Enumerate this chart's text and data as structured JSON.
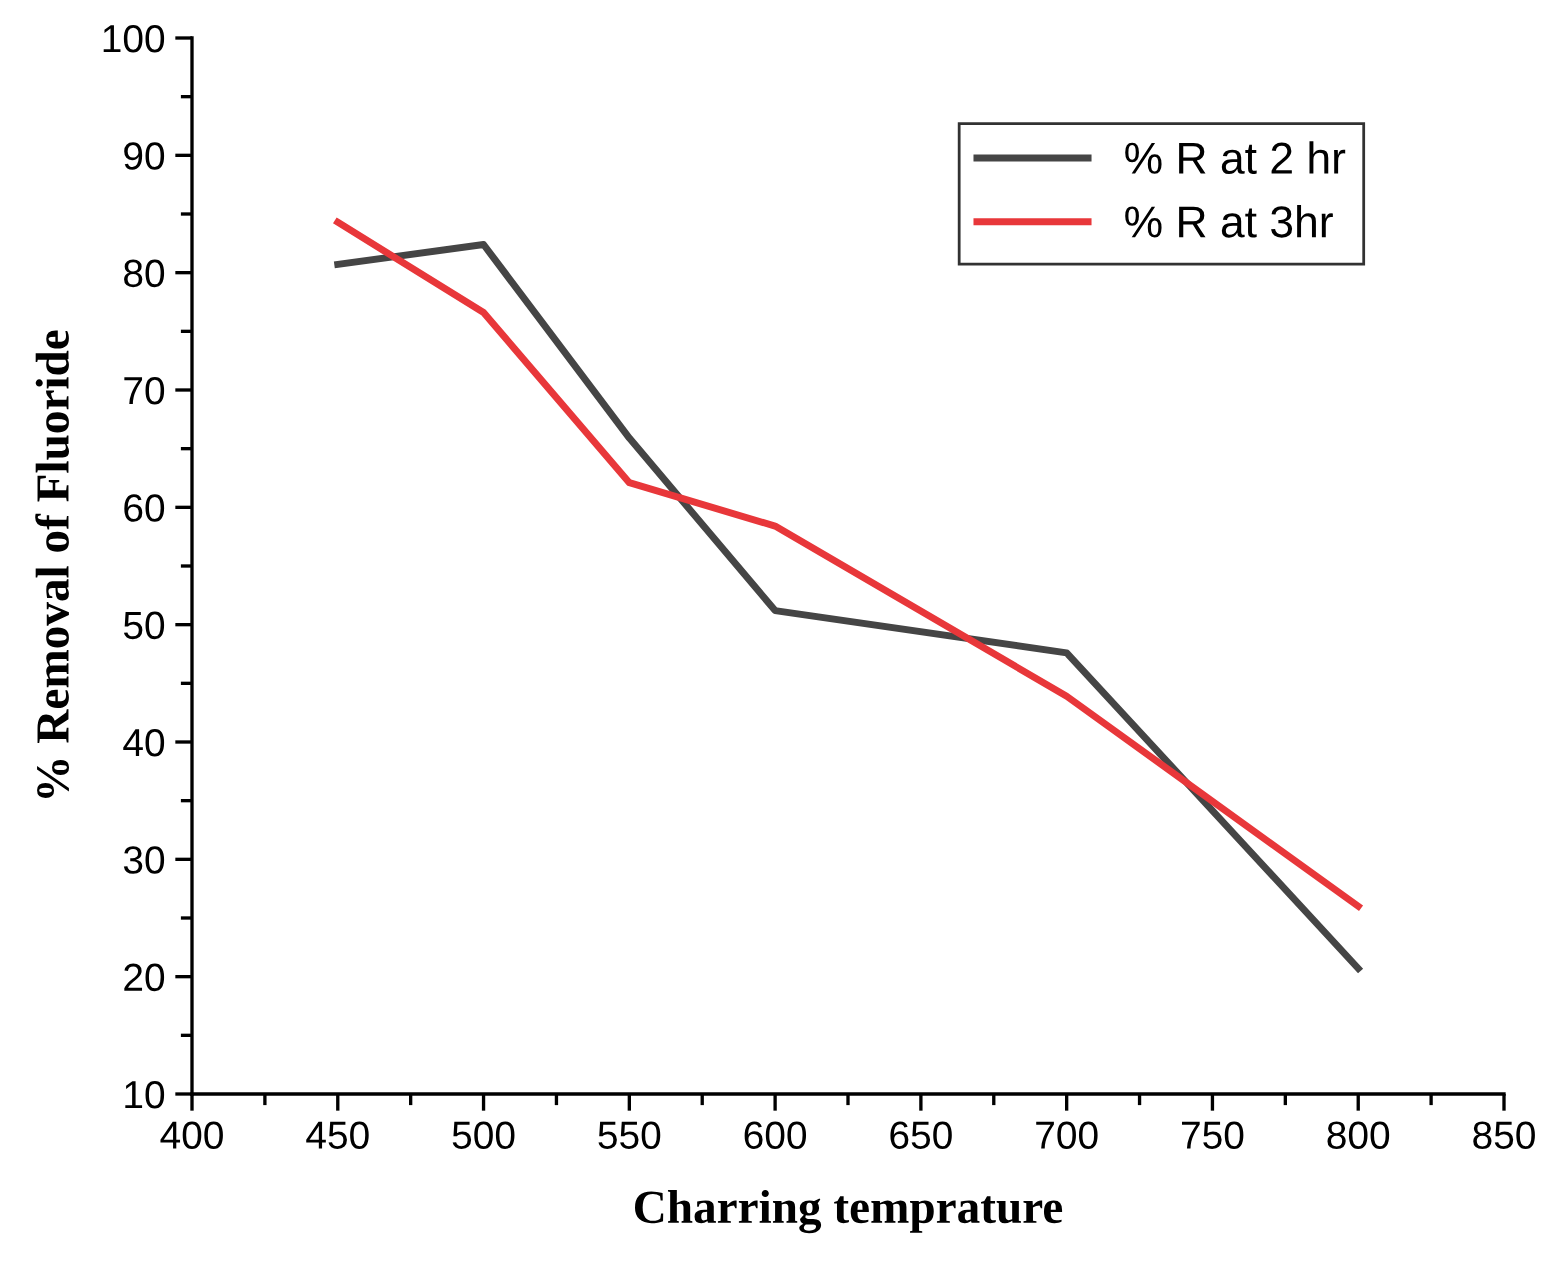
{
  "chart_data": {
    "type": "line",
    "xlabel": "Charring temprature",
    "ylabel": "% Removal of Fluoride",
    "x": [
      450,
      500,
      550,
      600,
      700,
      800
    ],
    "series": [
      {
        "name": "% R at 2 hr",
        "color": "#454545",
        "values": [
          80.7,
          82.4,
          65.9,
          51.2,
          47.6,
          20.7
        ]
      },
      {
        "name": "% R at 3hr",
        "color": "#e8373a",
        "values": [
          84.3,
          76.6,
          62.1,
          58.4,
          43.9,
          26.0
        ]
      }
    ],
    "xlim": [
      400,
      850
    ],
    "xticks": [
      400,
      450,
      500,
      550,
      600,
      650,
      700,
      750,
      800,
      850
    ],
    "ylim": [
      10,
      100
    ],
    "yticks": [
      10,
      20,
      30,
      40,
      50,
      60,
      70,
      80,
      90,
      100
    ],
    "grid": false,
    "legend": "top right",
    "marker": "none",
    "line_style": "solid"
  }
}
